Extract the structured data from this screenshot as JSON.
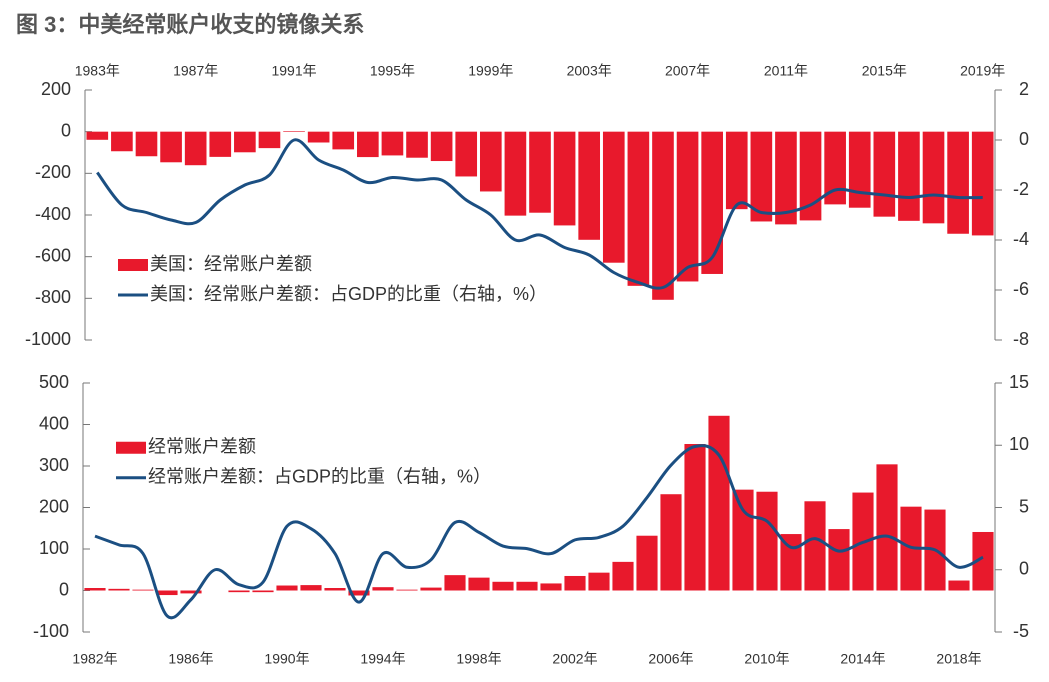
{
  "title": "图 3：中美经常账户收支的镜像关系",
  "chart_data": [
    {
      "type": "bar_line",
      "categories": [
        "1983年",
        null,
        null,
        null,
        "1987年",
        null,
        null,
        null,
        "1991年",
        null,
        null,
        null,
        "1995年",
        null,
        null,
        null,
        "1999年",
        null,
        null,
        null,
        "2003年",
        null,
        null,
        null,
        "2007年",
        null,
        null,
        null,
        "2011年",
        null,
        null,
        null,
        "2015年",
        null,
        null,
        null,
        "2019年"
      ],
      "x_axis_position": "top",
      "series": [
        {
          "name": "美国：经常账户差额",
          "type": "bar",
          "color": "#e8192c",
          "values": [
            -39,
            -94,
            -118,
            -147,
            -161,
            -121,
            -99,
            -79,
            3,
            -52,
            -85,
            -122,
            -114,
            -125,
            -141,
            -215,
            -287,
            -403,
            -389,
            -450,
            -519,
            -629,
            -740,
            -807,
            -719,
            -683,
            -372,
            -431,
            -445,
            -426,
            -349,
            -365,
            -408,
            -428,
            -440,
            -490,
            -498
          ]
        },
        {
          "name": "美国：经常账户差额：占GDP的比重（右轴，%）",
          "type": "line",
          "axis": "y2",
          "color": "#1b4f82",
          "values": [
            -1.3,
            -2.6,
            -2.9,
            -3.2,
            -3.3,
            -2.4,
            -1.8,
            -1.4,
            0.0,
            -0.8,
            -1.2,
            -1.7,
            -1.5,
            -1.6,
            -1.6,
            -2.4,
            -3.0,
            -4.0,
            -3.8,
            -4.3,
            -4.6,
            -5.3,
            -5.7,
            -5.9,
            -5.1,
            -4.7,
            -2.6,
            -2.9,
            -2.9,
            -2.6,
            -2.0,
            -2.1,
            -2.2,
            -2.3,
            -2.2,
            -2.3,
            -2.3
          ]
        }
      ],
      "ylim": [
        -1000,
        200
      ],
      "yticks": [
        200,
        0,
        -200,
        -400,
        -600,
        -800,
        -1000
      ],
      "y2lim": [
        -8,
        2
      ],
      "y2ticks": [
        2,
        0,
        -2,
        -4,
        -6,
        -8
      ],
      "legend": "middle-left"
    },
    {
      "type": "bar_line",
      "categories": [
        "1982年",
        null,
        null,
        null,
        "1986年",
        null,
        null,
        null,
        "1990年",
        null,
        null,
        null,
        "1994年",
        null,
        null,
        null,
        "1998年",
        null,
        null,
        null,
        "2002年",
        null,
        null,
        null,
        "2006年",
        null,
        null,
        null,
        "2010年",
        null,
        null,
        null,
        "2014年",
        null,
        null,
        null,
        "2018年",
        null
      ],
      "x_axis_position": "bottom",
      "series": [
        {
          "name": "经常账户差额",
          "type": "bar",
          "color": "#e8192c",
          "values": [
            6,
            4,
            2,
            -11,
            -7,
            0,
            -4,
            -4,
            12,
            13,
            6,
            -12,
            8,
            2,
            7,
            37,
            31,
            21,
            21,
            17,
            35,
            43,
            69,
            132,
            232,
            353,
            421,
            243,
            238,
            136,
            215,
            148,
            236,
            304,
            202,
            195,
            24,
            141
          ]
        },
        {
          "name": "经常账户差额：占GDP的比重（右轴，%）",
          "type": "line",
          "axis": "y2",
          "color": "#1b4f82",
          "values": [
            2.7,
            2.0,
            1.3,
            -3.7,
            -2.4,
            0.0,
            -1.2,
            -1.0,
            3.5,
            3.3,
            1.3,
            -2.6,
            1.3,
            0.2,
            0.8,
            3.8,
            3.0,
            1.9,
            1.7,
            1.3,
            2.4,
            2.6,
            3.5,
            5.8,
            8.4,
            9.9,
            9.2,
            4.8,
            3.9,
            1.8,
            2.5,
            1.5,
            2.2,
            2.7,
            1.8,
            1.6,
            0.2,
            1.0
          ]
        }
      ],
      "ylim": [
        -100,
        500
      ],
      "yticks": [
        500,
        400,
        300,
        200,
        100,
        0,
        -100
      ],
      "y2lim": [
        -5,
        15
      ],
      "y2ticks": [
        15,
        10,
        5,
        0,
        -5
      ],
      "legend": "upper-left"
    }
  ]
}
